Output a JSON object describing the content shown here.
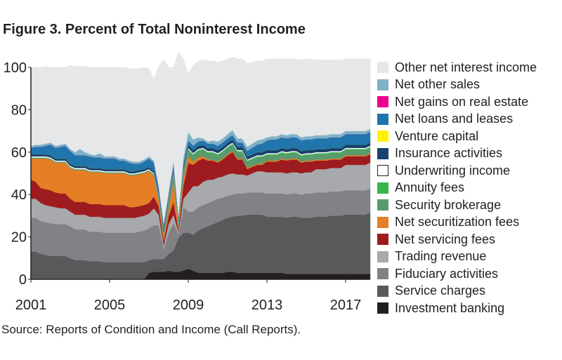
{
  "title": "Figure 3. Percent of Total Noninterest Income",
  "source": "Source: Reports of Condition and Income (Call Reports).",
  "chart_data": {
    "type": "area",
    "stacked": true,
    "title": "Figure 3. Percent of Total Noninterest Income",
    "ylim": [
      0,
      100
    ],
    "xlim": [
      2001,
      2018.25
    ],
    "y_ticks": [
      "0",
      "20",
      "40",
      "60",
      "80",
      "100"
    ],
    "x_ticks": [
      "2001",
      "2005",
      "2009",
      "2013",
      "2017"
    ],
    "legend_position": "right",
    "grid": false,
    "x": [
      2001.0,
      2001.25,
      2001.5,
      2001.75,
      2002.0,
      2002.25,
      2002.5,
      2002.75,
      2003.0,
      2003.25,
      2003.5,
      2003.75,
      2004.0,
      2004.25,
      2004.5,
      2004.75,
      2005.0,
      2005.25,
      2005.5,
      2005.75,
      2006.0,
      2006.25,
      2006.5,
      2006.75,
      2007.0,
      2007.25,
      2007.5,
      2007.75,
      2008.0,
      2008.25,
      2008.5,
      2008.75,
      2009.0,
      2009.25,
      2009.5,
      2009.75,
      2010.0,
      2010.25,
      2010.5,
      2010.75,
      2011.0,
      2011.25,
      2011.5,
      2011.75,
      2012.0,
      2012.25,
      2012.5,
      2012.75,
      2013.0,
      2013.25,
      2013.5,
      2013.75,
      2014.0,
      2014.25,
      2014.5,
      2014.75,
      2015.0,
      2015.25,
      2015.5,
      2015.75,
      2016.0,
      2016.25,
      2016.5,
      2016.75,
      2017.0,
      2017.25,
      2017.5,
      2017.75,
      2018.0,
      2018.25
    ],
    "series": [
      {
        "name": "Investment banking",
        "color": "#231f20",
        "values": [
          0,
          0,
          0,
          0,
          0,
          0,
          0,
          0,
          0,
          0,
          0,
          0,
          0,
          0,
          0,
          0,
          0,
          0,
          0,
          0,
          0,
          0,
          0,
          0,
          3,
          3.5,
          3.5,
          3.5,
          4,
          3.5,
          3.5,
          4,
          5,
          4,
          3,
          3,
          3,
          3,
          3,
          3,
          3.5,
          3.5,
          3,
          3,
          3,
          3,
          3,
          3,
          3,
          3,
          3,
          3,
          2.5,
          2.5,
          2.5,
          2.5,
          2.5,
          2.5,
          2.5,
          2.5,
          2.5,
          2.5,
          2.5,
          2.5,
          2.5,
          2.5,
          2.5,
          2.5,
          2.5,
          2.5
        ]
      },
      {
        "name": "Service charges",
        "color": "#58595b",
        "values": [
          13,
          13,
          12,
          11.5,
          11,
          11,
          11,
          11,
          10,
          9,
          9,
          9,
          8.5,
          8.5,
          8.5,
          8,
          8,
          8,
          8,
          8,
          8,
          8,
          8,
          8,
          6,
          6,
          6,
          6,
          8,
          10,
          16,
          18,
          17,
          17,
          20,
          21,
          22,
          23,
          24,
          25,
          25.5,
          26,
          27,
          27,
          27.5,
          27.5,
          27.5,
          27.5,
          26.5,
          26.5,
          26.5,
          26.5,
          26.5,
          27,
          27,
          26.5,
          26.5,
          26.5,
          27,
          27,
          27,
          27.5,
          27.5,
          27.5,
          28,
          28,
          28,
          28,
          28,
          29
        ]
      },
      {
        "name": "Fiduciary activities",
        "color": "#808285",
        "values": [
          16,
          16,
          15.5,
          15.5,
          15.5,
          15,
          15,
          15,
          15,
          14.5,
          14.5,
          14.5,
          14,
          14,
          14,
          14,
          14,
          14,
          14,
          14,
          14,
          14,
          14.5,
          15,
          15,
          16,
          16,
          5,
          10,
          13,
          2,
          12,
          10,
          11,
          11,
          11,
          11,
          11,
          11,
          10.5,
          10.5,
          10.5,
          10.5,
          10.5,
          10.5,
          10.5,
          10.5,
          10.5,
          11,
          11,
          11,
          11,
          11,
          11,
          11,
          11,
          11.5,
          11.5,
          11.5,
          11.5,
          11.5,
          11.5,
          11.5,
          11.5,
          11.5,
          11.5,
          11.5,
          11.5,
          11.5,
          11.5
        ]
      },
      {
        "name": "Trading revenue",
        "color": "#a7a9ac",
        "values": [
          9,
          9,
          8.5,
          8,
          8,
          8,
          7.5,
          7.5,
          7,
          7,
          7,
          7,
          7,
          7,
          7,
          7,
          7,
          7,
          7,
          7,
          7,
          7,
          7,
          7,
          7,
          8,
          5,
          1.5,
          4,
          4,
          1,
          4,
          9,
          12,
          10,
          11,
          11,
          10,
          10,
          10,
          10,
          10,
          9,
          9,
          8,
          9,
          10,
          10,
          10,
          10,
          10,
          10,
          10,
          10,
          10,
          10,
          10,
          10,
          11,
          11,
          11,
          11,
          11,
          11,
          12,
          12,
          12,
          12,
          12,
          12
        ]
      },
      {
        "name": "Net servicing fees",
        "color": "#9e1b1f",
        "values": [
          9,
          8,
          7,
          7.5,
          7.5,
          7,
          7,
          7,
          6,
          6,
          6,
          6,
          6,
          6,
          6,
          6,
          6,
          6,
          6,
          6,
          5,
          5,
          5,
          5,
          5,
          5.5,
          4,
          2,
          4,
          6,
          1,
          6,
          14,
          10,
          12,
          11,
          9,
          9,
          7,
          8,
          9,
          10,
          7,
          7,
          3,
          3,
          3,
          3,
          5,
          5,
          5,
          6,
          6,
          6,
          6,
          5,
          5,
          5,
          4,
          4,
          4,
          4,
          4,
          4,
          4,
          4,
          4,
          4,
          4,
          4
        ]
      },
      {
        "name": "Net securitization fees",
        "color": "#e57e25",
        "values": [
          10,
          11,
          14,
          14.5,
          14.5,
          14,
          14.5,
          14.5,
          14.5,
          15,
          15,
          15,
          15,
          15,
          15,
          15,
          15,
          15,
          15,
          15,
          15,
          15,
          15,
          15,
          15,
          10,
          3,
          1.5,
          3,
          10,
          1,
          3,
          3,
          1.5,
          1.5,
          1,
          0.5,
          0.5,
          0.5,
          0.5,
          0.5,
          0.5,
          0.5,
          0.5,
          0.5,
          0.5,
          0.5,
          0.5,
          0.5,
          0.5,
          0.5,
          0.5,
          0.5,
          0.5,
          0.5,
          0.5,
          0.5,
          0.5,
          0.5,
          0.5,
          0.5,
          0.5,
          0.5,
          0.5,
          0.5,
          0.5,
          0.5,
          0.5,
          0.5,
          0.5
        ]
      },
      {
        "name": "Security brokerage",
        "color": "#5a9a6f",
        "values": [
          0.5,
          0.5,
          0.5,
          0.5,
          0.5,
          0.5,
          0.5,
          0.5,
          0.5,
          0.5,
          0.5,
          0.5,
          0.5,
          0.5,
          0.5,
          0.5,
          0.5,
          0.5,
          0.5,
          0.5,
          0.5,
          0.5,
          0.5,
          0.5,
          0.5,
          0.5,
          1,
          1.5,
          3,
          3,
          1.5,
          3,
          3,
          3,
          3,
          3,
          3,
          3,
          3,
          3,
          3,
          3,
          3,
          3,
          3,
          3,
          3,
          3,
          2.5,
          2.5,
          2.5,
          2.5,
          2.5,
          2.5,
          2.5,
          2.5,
          2.5,
          2.5,
          2.5,
          2.5,
          2.5,
          2.5,
          2.5,
          2.5,
          2.5,
          2.5,
          2.5,
          2.5,
          2.5,
          2.5
        ]
      },
      {
        "name": "Annuity fees",
        "color": "#39b54a",
        "values": [
          0,
          0,
          0,
          0,
          0,
          0,
          0,
          0,
          0,
          0,
          0,
          0,
          0,
          0,
          0,
          0,
          0,
          0,
          0,
          0,
          0,
          0,
          0,
          0,
          0,
          0,
          0,
          0.5,
          0.5,
          0.5,
          0.5,
          0.5,
          0.5,
          0.5,
          0.5,
          0.5,
          0.5,
          0.5,
          0.5,
          0.5,
          0.5,
          0.5,
          0.5,
          0.5,
          0.5,
          0.5,
          0.5,
          0.5,
          0.5,
          0.5,
          0.5,
          0.5,
          0.5,
          0.5,
          0.5,
          0.5,
          0.5,
          0.5,
          0.5,
          0.5,
          0.5,
          0.5,
          0.5,
          0.5,
          0.5,
          0.5,
          0.5,
          0.5,
          0.5,
          0.5
        ]
      },
      {
        "name": "Underwriting income",
        "color": "#ffffff",
        "values": [
          0.5,
          0.5,
          0.5,
          0.5,
          0.5,
          0.5,
          0.5,
          0.5,
          0.5,
          0.5,
          0.5,
          0.5,
          0.5,
          0.5,
          0.5,
          0.5,
          0.5,
          0.5,
          0.5,
          0.5,
          0.5,
          0.5,
          0.5,
          0.5,
          0.5,
          0.5,
          0.5,
          0.5,
          0.5,
          0.5,
          0.5,
          0.5,
          0.5,
          0.5,
          0.5,
          0.5,
          0.5,
          0.5,
          0.5,
          0.5,
          0.5,
          0.5,
          0.5,
          0.5,
          0.5,
          0.5,
          0.5,
          0.5,
          0.5,
          0.5,
          0.5,
          0.5,
          0.5,
          0.5,
          0.5,
          0.5,
          0.5,
          0.5,
          0.5,
          0.5,
          0.5,
          0.5,
          0.5,
          0.5,
          0.5,
          0.5,
          0.5,
          0.5,
          0.5,
          0.5
        ]
      },
      {
        "name": "Insurance activities",
        "color": "#17406d",
        "values": [
          1,
          1,
          1,
          1,
          1,
          1,
          1,
          1,
          1,
          1,
          1,
          1,
          1,
          1,
          1,
          1,
          1,
          1,
          1,
          1,
          1,
          1,
          1,
          1,
          1,
          1,
          1,
          1.5,
          1.5,
          1.5,
          1,
          1.5,
          1.5,
          1.5,
          1.5,
          1.5,
          1.5,
          1.5,
          1.5,
          1.5,
          1.5,
          1.5,
          1.5,
          1.5,
          1.5,
          1.5,
          1.5,
          1.5,
          1.5,
          1.5,
          1.5,
          1.5,
          1.5,
          1.5,
          1.5,
          1.5,
          1.5,
          1.5,
          1.5,
          1.5,
          1.5,
          1.5,
          1.5,
          1.5,
          1.5,
          1.5,
          1.5,
          1.5,
          1.5,
          1.5
        ]
      },
      {
        "name": "Venture capital",
        "color": "#fff200",
        "values": [
          0,
          0,
          0,
          0,
          0,
          0,
          0,
          0,
          0,
          0,
          0,
          0,
          0,
          0,
          0,
          0,
          0,
          0,
          0,
          0,
          0,
          0,
          0,
          0,
          0,
          0,
          0,
          0,
          0,
          0,
          0,
          0,
          0,
          0,
          0,
          0,
          0,
          0,
          0,
          0,
          0,
          0,
          0,
          0,
          0,
          0,
          0,
          0,
          0,
          0,
          0,
          0,
          0,
          0,
          0,
          0,
          0,
          0,
          0,
          0,
          0,
          0,
          0,
          0,
          0,
          0,
          0,
          0,
          0,
          0
        ]
      },
      {
        "name": "Net loans and leases",
        "color": "#2175ad",
        "values": [
          3,
          3.5,
          3.5,
          4,
          5,
          5,
          5.5,
          6,
          6,
          5,
          5,
          5,
          5.5,
          5,
          5,
          5,
          5,
          5,
          4,
          4,
          4,
          3.5,
          3,
          3.5,
          4,
          4,
          3,
          2,
          1,
          2,
          1,
          2,
          2,
          2,
          2,
          2,
          2,
          2,
          2,
          2,
          2,
          2,
          2,
          2,
          2.5,
          3,
          3.5,
          4,
          4.5,
          5,
          5,
          5,
          5,
          5,
          5,
          5,
          5,
          5,
          5,
          5,
          5,
          5,
          5,
          5,
          5,
          5,
          5,
          5,
          5,
          5
        ]
      },
      {
        "name": "Net gains on real estate",
        "color": "#ec008c",
        "values": [
          0,
          0,
          0,
          0,
          0,
          0,
          0,
          0,
          0,
          0,
          0,
          0,
          0,
          0,
          0,
          0,
          0,
          0,
          0,
          0,
          0,
          0,
          0,
          0,
          0,
          0,
          0,
          0,
          0,
          0,
          0,
          0,
          0,
          0,
          0,
          0,
          0,
          0,
          0,
          0,
          0,
          0,
          0,
          0,
          0,
          0,
          0,
          0,
          0,
          0,
          0,
          0,
          0,
          0,
          0,
          0,
          0,
          0,
          0,
          0,
          0,
          0,
          0,
          0,
          0,
          0,
          0,
          0,
          0,
          0
        ]
      },
      {
        "name": "Net other sales",
        "color": "#7fb2c8",
        "values": [
          1,
          1,
          1,
          1,
          1,
          1,
          1,
          1,
          1,
          1.5,
          3,
          1.5,
          1,
          1,
          2,
          1,
          1,
          1,
          1,
          1,
          1,
          1,
          1,
          1,
          1,
          1,
          1,
          1,
          2,
          2,
          1,
          3,
          4,
          3,
          2,
          1,
          1,
          1.5,
          2,
          2,
          2,
          2.5,
          2,
          2,
          2,
          2,
          2,
          2,
          1.5,
          1.5,
          1.5,
          1.5,
          1.5,
          1.5,
          1.5,
          1.5,
          1.5,
          1.5,
          1.5,
          1.5,
          1.5,
          1.5,
          1.5,
          1.5,
          1.5,
          1.5,
          1.5,
          1.5,
          1.5,
          1.5
        ]
      },
      {
        "name": "Other net interest income",
        "color": "#e6e7e8",
        "values": [
          37,
          36.5,
          36.5,
          36.5,
          35.5,
          37,
          36.5,
          36,
          39.5,
          40.5,
          39,
          40.5,
          41,
          41.5,
          40.5,
          42,
          42,
          42,
          43,
          43,
          43.5,
          44,
          44,
          43.5,
          41.5,
          38.5,
          56.5,
          77.5,
          58.5,
          44,
          77.5,
          46.5,
          27.5,
          35,
          36,
          37,
          38,
          37.5,
          37.5,
          36.5,
          35.5,
          34.5,
          37.5,
          37.5,
          39.5,
          38.5,
          37.5,
          37,
          37,
          36.5,
          36.5,
          35.5,
          36,
          35.5,
          35.5,
          36.5,
          36.5,
          36.5,
          35.5,
          35.5,
          35.5,
          35,
          35,
          35,
          34,
          34,
          34,
          34,
          34,
          33
        ]
      }
    ]
  },
  "legend": [
    {
      "label": "Other net interest income",
      "color": "#e6e7e8"
    },
    {
      "label": "Net other sales",
      "color": "#7fb2c8"
    },
    {
      "label": "Net gains on real estate",
      "color": "#ec008c"
    },
    {
      "label": "Net loans and leases",
      "color": "#2175ad"
    },
    {
      "label": "Venture capital",
      "color": "#fff200"
    },
    {
      "label": "Insurance activities",
      "color": "#17406d"
    },
    {
      "label": "Underwriting income",
      "color": "#ffffff"
    },
    {
      "label": "Annuity fees",
      "color": "#39b54a"
    },
    {
      "label": "Security brokerage",
      "color": "#5a9a6f"
    },
    {
      "label": "Net securitization fees",
      "color": "#e57e25"
    },
    {
      "label": "Net servicing fees",
      "color": "#9e1b1f"
    },
    {
      "label": "Trading revenue",
      "color": "#a7a9ac"
    },
    {
      "label": "Fiduciary activities",
      "color": "#808285"
    },
    {
      "label": "Service charges",
      "color": "#58595b"
    },
    {
      "label": "Investment banking",
      "color": "#231f20"
    }
  ]
}
